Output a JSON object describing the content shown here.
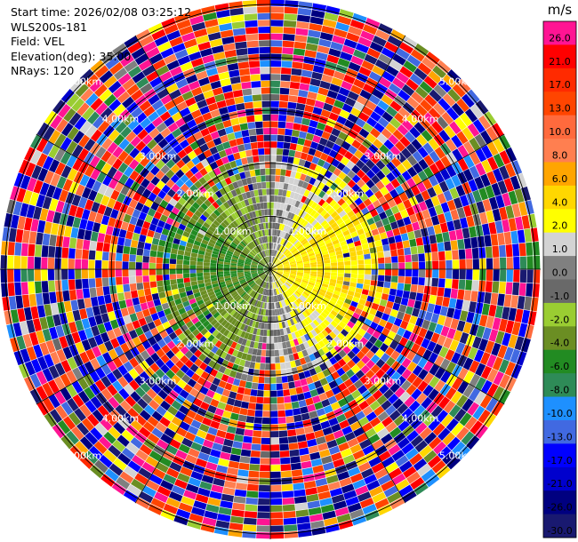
{
  "header": {
    "start_time": "Start time: 2026/02/08 03:25:12",
    "instrument": "WLS200s-181",
    "field": "Field: VEL",
    "elevation": "Elevation(deg): 35.00",
    "nrays": "NRays: 120"
  },
  "colorbar": {
    "unit": "m/s",
    "ticks": [
      "26.0",
      "21.0",
      "17.0",
      "13.0",
      "10.0",
      "8.0",
      "6.0",
      "4.0",
      "2.0",
      "1.0",
      "0.0",
      "-1.0",
      "-2.0",
      "-4.0",
      "-6.0",
      "-8.0",
      "-10.0",
      "-13.0",
      "-17.0",
      "-21.0",
      "-26.0",
      "-30.0"
    ],
    "colors": [
      "#ff1493",
      "#ff0000",
      "#ff2a00",
      "#ff4500",
      "#ff6a3d",
      "#ff7f50",
      "#ffa500",
      "#ffd700",
      "#ffff00",
      "#d3d3d3",
      "#808080",
      "#696969",
      "#9acd32",
      "#6b8e23",
      "#228b22",
      "#2e8b57",
      "#1e90ff",
      "#4169e1",
      "#0000ff",
      "#0000cd",
      "#000080",
      "#191970"
    ]
  },
  "chart_data": {
    "type": "ppi",
    "field": "VEL",
    "units": "m/s",
    "nrays": 120,
    "elevation_deg": 35.0,
    "vmin": -30.0,
    "vmax": 30.0,
    "range_rings_km": [
      1.0,
      2.0,
      3.0,
      4.0,
      5.0
    ],
    "range_labels": [
      "1.00km",
      "2.00km",
      "3.00km",
      "4.00km",
      "5.00km"
    ],
    "max_range_km": 5.1,
    "pattern": "noisy speckle beyond ~2.2 km; positive radial velocity (yellow/orange) toward the east, negative (green) toward the west near the center"
  }
}
